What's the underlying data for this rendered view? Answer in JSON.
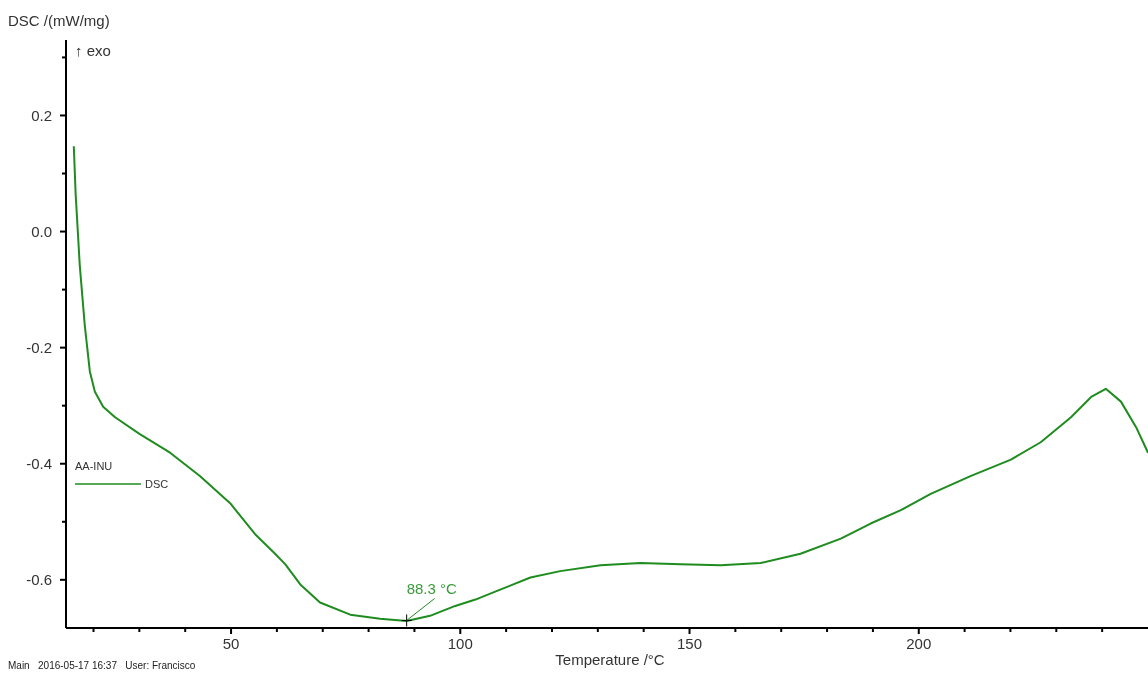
{
  "chart_data": {
    "type": "line",
    "ylabel": "DSC /(mW/mg)",
    "xlabel": "Temperature /°C",
    "legend_title": "AA-INU",
    "legend": "left",
    "grid": false,
    "line_style": "solid",
    "marker": "none",
    "xlim": [
      14,
      250
    ],
    "ylim": [
      -0.683,
      0.33
    ],
    "xticks": [
      {
        "value": 20,
        "label": null
      },
      {
        "value": 30,
        "label": null
      },
      {
        "value": 40,
        "label": null
      },
      50,
      {
        "value": 60,
        "label": null
      },
      {
        "value": 70,
        "label": null
      },
      {
        "value": 80,
        "label": null
      },
      {
        "value": 90,
        "label": null
      },
      100,
      {
        "value": 110,
        "label": null
      },
      {
        "value": 120,
        "label": null
      },
      {
        "value": 130,
        "label": null
      },
      {
        "value": 140,
        "label": null
      },
      150,
      {
        "value": 160,
        "label": null
      },
      {
        "value": 170,
        "label": null
      },
      {
        "value": 180,
        "label": null
      },
      {
        "value": 190,
        "label": null
      },
      200,
      {
        "value": 210,
        "label": null
      },
      {
        "value": 220,
        "label": null
      },
      {
        "value": 230,
        "label": null
      },
      {
        "value": 240,
        "label": null
      }
    ],
    "yticks": [
      {
        "value": -0.6,
        "label": "-0.6"
      },
      {
        "value": -0.5,
        "label": null
      },
      {
        "value": -0.4,
        "label": "-0.4"
      },
      {
        "value": -0.3,
        "label": null
      },
      {
        "value": -0.2,
        "label": "-0.2"
      },
      {
        "value": -0.1,
        "label": null
      },
      {
        "value": 0,
        "label": "0.0"
      },
      {
        "value": 0.1,
        "label": null
      },
      {
        "value": 0.2,
        "label": "0.2"
      },
      {
        "value": 0.3,
        "label": null
      }
    ],
    "series": [
      {
        "name": "DSC",
        "color": "#1e8c1e",
        "x": [
          15.7,
          16.1,
          17.0,
          18.1,
          19.2,
          20.3,
          22.1,
          24.7,
          30.1,
          36.7,
          43.2,
          49.8,
          55.2,
          59.6,
          61.8,
          65.1,
          69.4,
          76.0,
          82.5,
          88.3,
          93.4,
          98.9,
          103.3,
          108.7,
          115.3,
          121.8,
          130.6,
          139.3,
          148.0,
          156.8,
          165.5,
          174.2,
          183.0,
          189.5,
          196.1,
          202.6,
          211.4,
          220.1,
          226.6,
          233.2,
          237.6,
          240.8,
          244.1,
          247.4,
          250.0
        ],
        "values": [
          0.147,
          0.065,
          -0.058,
          -0.162,
          -0.241,
          -0.276,
          -0.302,
          -0.32,
          -0.349,
          -0.381,
          -0.421,
          -0.468,
          -0.521,
          -0.555,
          -0.573,
          -0.608,
          -0.639,
          -0.66,
          -0.667,
          -0.671,
          -0.662,
          -0.645,
          -0.634,
          -0.617,
          -0.596,
          -0.585,
          -0.575,
          -0.571,
          -0.573,
          -0.575,
          -0.571,
          -0.555,
          -0.529,
          -0.503,
          -0.48,
          -0.452,
          -0.421,
          -0.393,
          -0.363,
          -0.32,
          -0.285,
          -0.271,
          -0.293,
          -0.337,
          -0.381
        ]
      }
    ],
    "annotations": [
      "↑ exo",
      {
        "text": "88.3 °C",
        "x": 88.3,
        "y": -0.67
      },
      "Main   2016-05-17 16:37   User: Francisco"
    ]
  }
}
